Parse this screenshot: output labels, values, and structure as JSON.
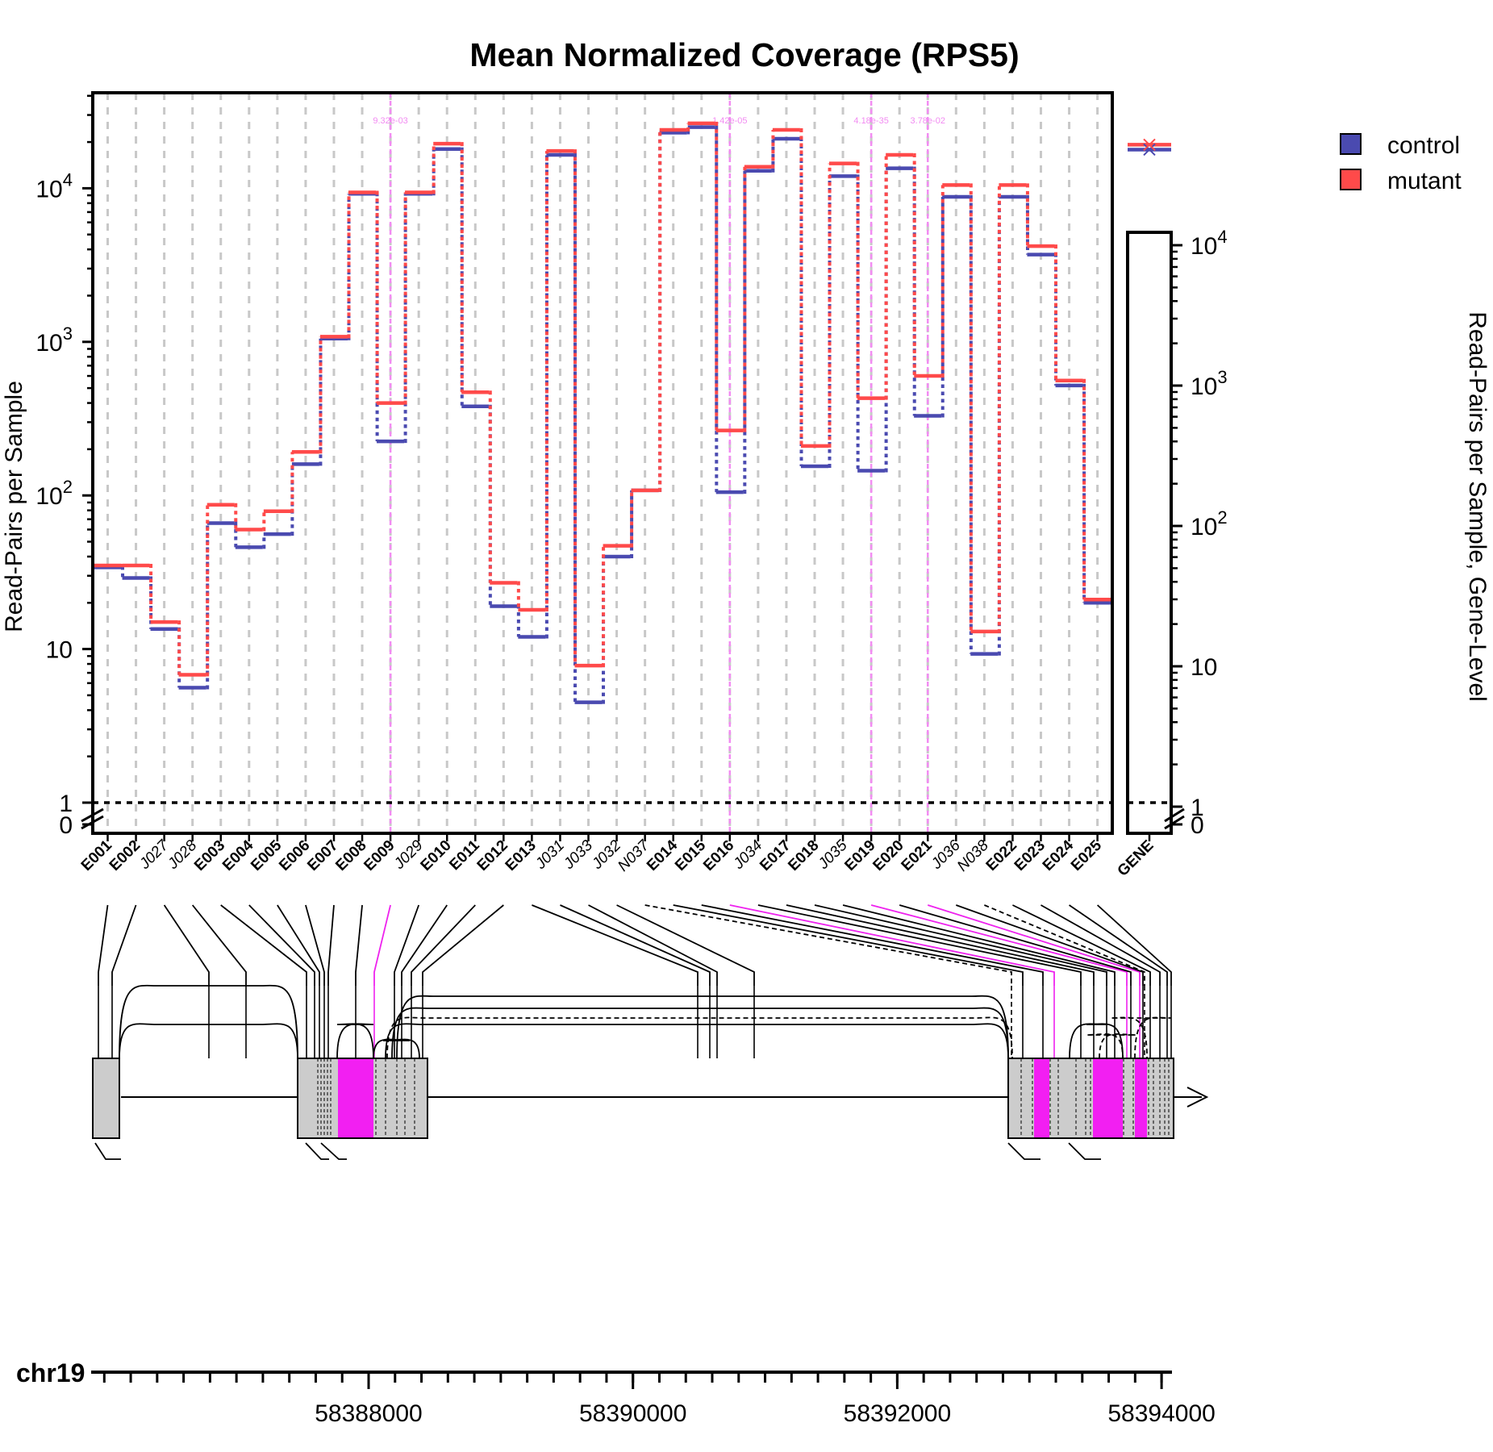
{
  "chart_data": {
    "type": "line",
    "title": "Mean Normalized Coverage (RPS5)",
    "ylabel": "Read-Pairs per Sample",
    "ylabel_right": "Read-Pairs per Sample, Gene-Level",
    "y_scale": "log",
    "y_ticks_main": [
      "0",
      "1",
      "10",
      "10^2",
      "10^3",
      "10^4"
    ],
    "y_ticks_gene": [
      "0",
      "1",
      "10",
      "10^2",
      "10^3",
      "10^4"
    ],
    "ylim": [
      0,
      40000
    ],
    "legend": {
      "position": "top-right",
      "entries": [
        "control",
        "mutant"
      ]
    },
    "colors": {
      "control": "#4a4ab0",
      "mutant": "#ff4a4a",
      "significant": "#ee22ee"
    },
    "features": [
      {
        "id": "E001",
        "kind": "exon"
      },
      {
        "id": "E002",
        "kind": "exon"
      },
      {
        "id": "J027",
        "kind": "junction"
      },
      {
        "id": "J028",
        "kind": "junction"
      },
      {
        "id": "E003",
        "kind": "exon"
      },
      {
        "id": "E004",
        "kind": "exon"
      },
      {
        "id": "E005",
        "kind": "exon"
      },
      {
        "id": "E006",
        "kind": "exon"
      },
      {
        "id": "E007",
        "kind": "exon"
      },
      {
        "id": "E008",
        "kind": "exon"
      },
      {
        "id": "E009",
        "kind": "exon"
      },
      {
        "id": "J029",
        "kind": "junction"
      },
      {
        "id": "E010",
        "kind": "exon"
      },
      {
        "id": "E011",
        "kind": "exon"
      },
      {
        "id": "E012",
        "kind": "exon"
      },
      {
        "id": "E013",
        "kind": "exon"
      },
      {
        "id": "J031",
        "kind": "junction"
      },
      {
        "id": "J033",
        "kind": "junction"
      },
      {
        "id": "J032",
        "kind": "junction"
      },
      {
        "id": "N037",
        "kind": "junction"
      },
      {
        "id": "E014",
        "kind": "exon"
      },
      {
        "id": "E015",
        "kind": "exon"
      },
      {
        "id": "E016",
        "kind": "exon"
      },
      {
        "id": "J034",
        "kind": "junction"
      },
      {
        "id": "E017",
        "kind": "exon"
      },
      {
        "id": "E018",
        "kind": "exon"
      },
      {
        "id": "J035",
        "kind": "junction"
      },
      {
        "id": "E019",
        "kind": "exon"
      },
      {
        "id": "E020",
        "kind": "exon"
      },
      {
        "id": "E021",
        "kind": "exon"
      },
      {
        "id": "J036",
        "kind": "junction"
      },
      {
        "id": "N038",
        "kind": "junction"
      },
      {
        "id": "E022",
        "kind": "exon"
      },
      {
        "id": "E023",
        "kind": "exon"
      },
      {
        "id": "E024",
        "kind": "exon"
      },
      {
        "id": "E025",
        "kind": "exon"
      }
    ],
    "gene_label": "GENE",
    "series": [
      {
        "name": "control",
        "values": [
          34,
          29,
          13.5,
          5.6,
          66,
          46,
          56,
          160,
          1050,
          9200,
          225,
          9200,
          18000,
          380,
          19,
          12,
          16500,
          4.5,
          40,
          108,
          23000,
          25000,
          105,
          13000,
          21000,
          155,
          12000,
          145,
          13500,
          330,
          8800,
          9.3,
          8800,
          3700,
          520,
          20
        ]
      },
      {
        "name": "mutant",
        "values": [
          35,
          35,
          15,
          6.8,
          87,
          60,
          79,
          192,
          1080,
          9400,
          400,
          9400,
          19500,
          470,
          27,
          18,
          17500,
          7.8,
          47,
          108,
          24000,
          26500,
          265,
          13800,
          24000,
          210,
          14500,
          430,
          16500,
          600,
          10500,
          13,
          10500,
          4200,
          560,
          21
        ]
      }
    ],
    "gene_level": {
      "control": 48000,
      "mutant": 52000
    },
    "significant": [
      {
        "feature": "E009",
        "pvalue": "9.32e-03"
      },
      {
        "feature": "E016",
        "pvalue": "1.42e-05"
      },
      {
        "feature": "E019",
        "pvalue": "4.18e-35"
      },
      {
        "feature": "E021",
        "pvalue": "3.78e-02"
      }
    ],
    "chromosome": "chr19",
    "genomic_ticks": [
      "58388000",
      "58390000",
      "58392000",
      "58394000"
    ]
  }
}
